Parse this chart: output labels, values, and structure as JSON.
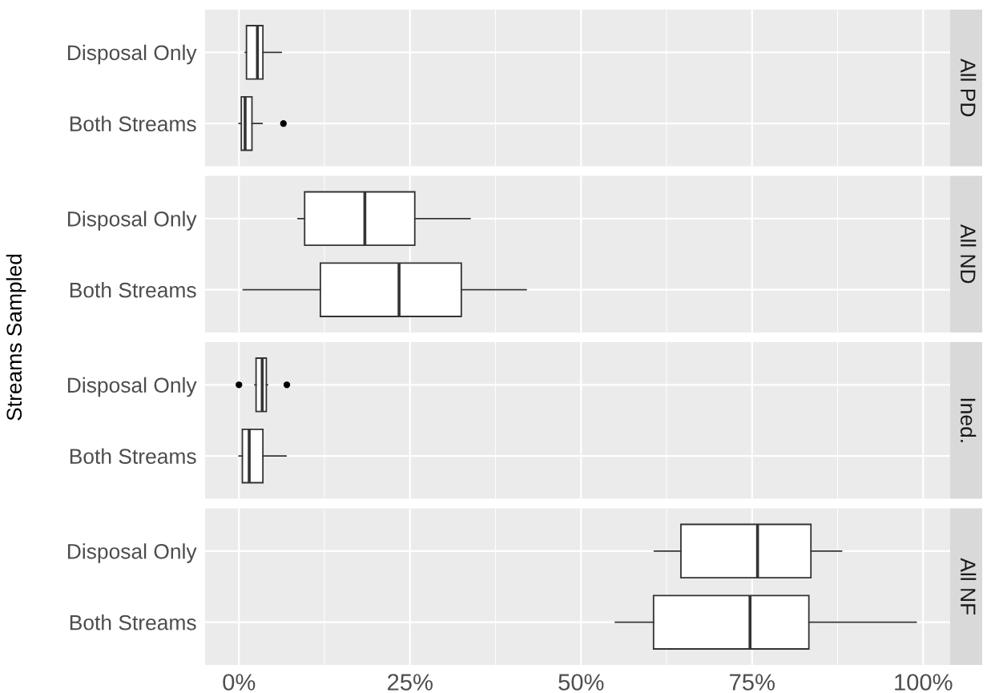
{
  "chart_data": [
    {
      "type": "box",
      "title": "All PD",
      "ylabel": "Streams Sampled",
      "orientation": "horizontal",
      "categories": [
        "Disposal Only",
        "Both Streams"
      ],
      "color": "#ffffff",
      "boxes": [
        {
          "low": 0.9,
          "q1": 1.1,
          "median": 2.7,
          "q3": 3.5,
          "high": 6.2
        },
        {
          "low": 0.0,
          "q1": 0.35,
          "median": 0.9,
          "q3": 1.9,
          "high": 3.4,
          "outliers": [
            6.5
          ]
        }
      ],
      "xlim": [
        -4.95,
        103.95
      ],
      "xticks": [
        0,
        25,
        50,
        75,
        100
      ],
      "tick_labels": "y",
      "grid": true
    },
    {
      "type": "box",
      "title": "All ND",
      "orientation": "horizontal",
      "categories": [
        "Disposal Only",
        "Both Streams"
      ],
      "color": "#ffffff",
      "boxes": [
        {
          "low": 8.6,
          "q1": 9.6,
          "median": 18.4,
          "q3": 25.7,
          "high": 33.8
        },
        {
          "low": 0.6,
          "q1": 11.9,
          "median": 23.4,
          "q3": 32.5,
          "high": 42.0
        }
      ],
      "xlim": [
        -4.95,
        103.95
      ],
      "xticks": [
        0,
        25,
        50,
        75,
        100
      ],
      "tick_labels": "y",
      "grid": true
    },
    {
      "type": "box",
      "title": "Ined.",
      "orientation": "horizontal",
      "categories": [
        "Disposal Only",
        "Both Streams"
      ],
      "color": "#ffffff",
      "boxes": [
        {
          "low": 2.3,
          "q1": 2.5,
          "median": 3.4,
          "q3": 4.0,
          "high": 4.2,
          "outliers": [
            0.0,
            7.0
          ]
        },
        {
          "low": 0.0,
          "q1": 0.5,
          "median": 1.5,
          "q3": 3.5,
          "high": 6.9
        }
      ],
      "xlim": [
        -4.95,
        103.95
      ],
      "xticks": [
        0,
        25,
        50,
        75,
        100
      ],
      "tick_labels": "y",
      "grid": true
    },
    {
      "type": "box",
      "title": "All NF",
      "orientation": "horizontal",
      "categories": [
        "Disposal Only",
        "Both Streams"
      ],
      "color": "#ffffff",
      "boxes": [
        {
          "low": 60.7,
          "q1": 64.6,
          "median": 75.8,
          "q3": 83.6,
          "high": 88.1
        },
        {
          "low": 55.0,
          "q1": 60.6,
          "median": 74.7,
          "q3": 83.3,
          "high": 99.0
        }
      ],
      "xlim": [
        -4.95,
        103.95
      ],
      "xticks": [
        {
          "value": 0,
          "label": "0%"
        },
        {
          "value": 25,
          "label": "25%"
        },
        {
          "value": 50,
          "label": "50%"
        },
        {
          "value": 75,
          "label": "75%"
        },
        {
          "value": 100,
          "label": "100%"
        }
      ],
      "grid": true
    }
  ]
}
